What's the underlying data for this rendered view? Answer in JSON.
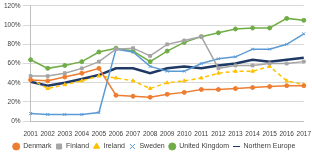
{
  "chart_data": {
    "type": "line",
    "categories": [
      "2001",
      "2002",
      "2003",
      "2004",
      "2005",
      "2006",
      "2007",
      "2008",
      "2009",
      "2010",
      "2011",
      "2012",
      "2013",
      "2014",
      "2015",
      "2016",
      "2017"
    ],
    "series": [
      {
        "name": "Denmark",
        "color": "#ED7D31",
        "marker": "circle",
        "line_style": "solid",
        "values": [
          43,
          42,
          46,
          50,
          55,
          27,
          26,
          25,
          28,
          30,
          33,
          33,
          34,
          35,
          36,
          37,
          37
        ]
      },
      {
        "name": "Finland",
        "color": "#A5A5A5",
        "marker": "square",
        "line_style": "solid",
        "values": [
          47,
          47,
          50,
          55,
          62,
          75,
          76,
          68,
          80,
          84,
          88,
          55,
          58,
          58,
          60,
          60,
          62
        ]
      },
      {
        "name": "Ireland",
        "color": "#FFC000",
        "marker": "triangle",
        "line_style": "dashed",
        "values": [
          44,
          34,
          38,
          42,
          47,
          45,
          42,
          34,
          40,
          42,
          45,
          50,
          52,
          52,
          57,
          42,
          38
        ]
      },
      {
        "name": "Sweden",
        "color": "#5B9BD5",
        "marker": "x",
        "line_style": "solid",
        "values": [
          8,
          7,
          7,
          7,
          9,
          75,
          72,
          57,
          52,
          52,
          60,
          65,
          67,
          75,
          75,
          80,
          91
        ]
      },
      {
        "name": "United Kingdom",
        "color": "#70AD47",
        "marker": "circle",
        "line_style": "solid",
        "values": [
          64,
          55,
          58,
          62,
          72,
          76,
          73,
          62,
          73,
          82,
          88,
          92,
          96,
          97,
          97,
          107,
          105
        ]
      },
      {
        "name": "Northern Europe",
        "color": "#203864",
        "marker": "none",
        "line_style": "solid",
        "values": [
          41,
          37,
          40,
          44,
          48,
          55,
          55,
          50,
          55,
          57,
          55,
          58,
          60,
          64,
          62,
          64,
          66
        ]
      }
    ],
    "ylim": [
      0,
      120
    ],
    "yticks": [
      {
        "value": 0,
        "label": "0%"
      },
      {
        "value": 20,
        "label": "20%"
      },
      {
        "value": 40,
        "label": "40%"
      },
      {
        "value": 60,
        "label": "60%"
      },
      {
        "value": 80,
        "label": "80%"
      },
      {
        "value": 100,
        "label": "100%"
      },
      {
        "value": 120,
        "label": "120%"
      }
    ],
    "grid": true,
    "legend": "bottom"
  }
}
